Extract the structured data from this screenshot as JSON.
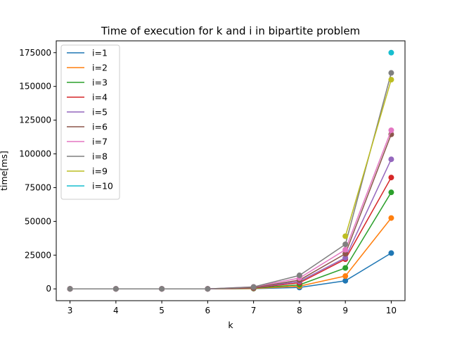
{
  "chart_data": {
    "type": "line",
    "title": "Time of execution for k and i in bipartite problem",
    "xlabel": "k",
    "ylabel": "time[ms]",
    "xlim": [
      2.7,
      10.3
    ],
    "ylim": [
      -8750,
      183750
    ],
    "xticks": [
      3,
      4,
      5,
      6,
      7,
      8,
      9,
      10
    ],
    "yticks": [
      0,
      25000,
      50000,
      75000,
      100000,
      125000,
      150000,
      175000
    ],
    "grid": false,
    "legend_position": "top-left",
    "markers": "circle",
    "series": [
      {
        "name": "i=1",
        "color": "#1f77b4",
        "x": [
          3,
          4,
          5,
          6,
          7,
          8,
          9,
          10
        ],
        "values": [
          0,
          0,
          0,
          0,
          150,
          1000,
          6000,
          26500
        ]
      },
      {
        "name": "i=2",
        "color": "#ff7f0e",
        "x": [
          3,
          4,
          5,
          6,
          7,
          8,
          9,
          10
        ],
        "values": [
          0,
          0,
          0,
          0,
          300,
          2000,
          9500,
          52500
        ]
      },
      {
        "name": "i=3",
        "color": "#2ca02c",
        "x": [
          3,
          4,
          5,
          6,
          7,
          8,
          9,
          10
        ],
        "values": [
          0,
          0,
          0,
          0,
          500,
          3000,
          15500,
          71500
        ]
      },
      {
        "name": "i=4",
        "color": "#d62728",
        "x": [
          3,
          4,
          5,
          6,
          7,
          8,
          9,
          10
        ],
        "values": [
          0,
          0,
          0,
          0,
          700,
          4500,
          22000,
          82500
        ]
      },
      {
        "name": "i=5",
        "color": "#9467bd",
        "x": [
          3,
          4,
          5,
          6,
          7,
          8,
          9,
          10
        ],
        "values": [
          0,
          0,
          0,
          0,
          900,
          5500,
          23000,
          96000
        ]
      },
      {
        "name": "i=6",
        "color": "#8c564b",
        "x": [
          3,
          4,
          5,
          6,
          7,
          8,
          9,
          10
        ],
        "values": [
          0,
          0,
          0,
          0,
          1000,
          6500,
          26000,
          114500
        ]
      },
      {
        "name": "i=7",
        "color": "#e377c2",
        "x": [
          3,
          4,
          5,
          6,
          7,
          8,
          9,
          10
        ],
        "values": [
          0,
          0,
          0,
          0,
          1500,
          8000,
          29000,
          117500
        ]
      },
      {
        "name": "i=8",
        "color": "#7f7f7f",
        "x": [
          3,
          4,
          5,
          6,
          7,
          8,
          9,
          10
        ],
        "values": [
          0,
          0,
          0,
          0,
          1400,
          10000,
          33000,
          160000
        ]
      },
      {
        "name": "i=9",
        "color": "#bcbd22",
        "x": [
          9,
          10
        ],
        "values": [
          39000,
          155000
        ]
      },
      {
        "name": "i=10",
        "color": "#17becf",
        "x": [
          10
        ],
        "values": [
          175000
        ]
      }
    ]
  }
}
